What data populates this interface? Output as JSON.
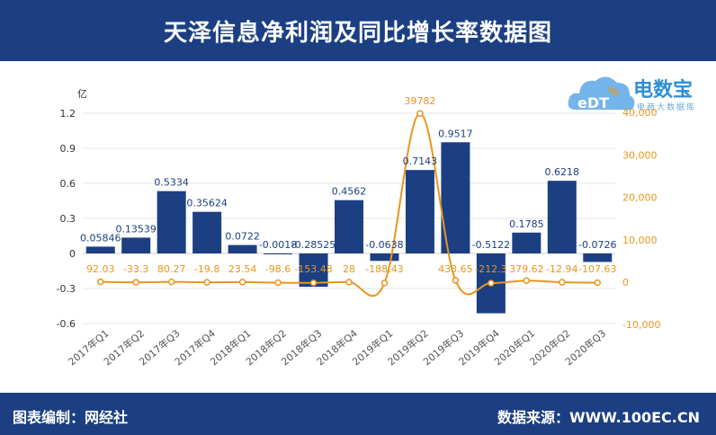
{
  "header": {
    "title": "天泽信息净利润及同比增长率数据图"
  },
  "footer": {
    "left": "图表编制：网经社",
    "right": "数据来源：WWW.100EC.CN"
  },
  "logo": {
    "main": "电数宝",
    "sub": "电商大数据库",
    "badge": "eDT"
  },
  "colors": {
    "bar": "#1b3f82",
    "line": "#e8951e",
    "header": "#1b3f82",
    "bar_label": "#1b3f82"
  },
  "chart_data": {
    "type": "bar",
    "categories": [
      "2017年Q1",
      "2017年Q2",
      "2017年Q3",
      "2017年Q4",
      "2018年Q1",
      "2018年Q2",
      "2018年Q3",
      "2018年Q4",
      "2019年Q1",
      "2019年Q2",
      "2019年Q3",
      "2019年Q4",
      "2020年Q1",
      "2020年Q2",
      "2020年Q3"
    ],
    "series": [
      {
        "type": "bar",
        "axis": "left",
        "values": [
          0.05846,
          0.13539,
          0.5334,
          0.35624,
          0.0722,
          -0.0018,
          -0.28525,
          0.4562,
          -0.0638,
          0.7143,
          0.9517,
          -0.5122,
          0.1785,
          0.6218,
          -0.0726
        ],
        "labels": [
          "0.05846",
          "0.13539",
          "0.5334",
          "0.35624",
          "0.0722",
          "-0.0018",
          "-0.28525",
          "0.4562",
          "-0.0638",
          "0.7143",
          "0.9517",
          "-0.5122",
          "0.1785",
          "0.6218",
          "-0.0726"
        ]
      },
      {
        "type": "line",
        "axis": "right",
        "values": [
          92.03,
          -33.3,
          80.27,
          -19.8,
          23.54,
          -98.6,
          -153.48,
          28,
          -188.43,
          39782,
          433.65,
          -212.3,
          379.62,
          -12.94,
          -107.63
        ],
        "labels": [
          "92.03",
          "-33.3",
          "80.27",
          "-19.8",
          "23.54",
          "-98.6",
          "-153.48",
          "28",
          "-188.43",
          "39782",
          "433.65",
          "-212.3",
          "379.62",
          "-12.94",
          "-107.63"
        ]
      }
    ],
    "y_left": {
      "unit": "亿",
      "ticks": [
        "1.2",
        "0.9",
        "0.6",
        "0.3",
        "0",
        "-0.3",
        "-0.6"
      ],
      "tick_values": [
        1.2,
        0.9,
        0.6,
        0.3,
        0,
        -0.3,
        -0.6
      ],
      "ylim": [
        -0.6,
        1.2
      ]
    },
    "y_right": {
      "ticks": [
        "40,000",
        "30,000",
        "20,000",
        "10,000",
        "0",
        "-10,000"
      ],
      "tick_values": [
        40000,
        30000,
        20000,
        10000,
        0,
        -10000
      ],
      "ylim": [
        -10000,
        40000
      ]
    },
    "grid": true
  }
}
